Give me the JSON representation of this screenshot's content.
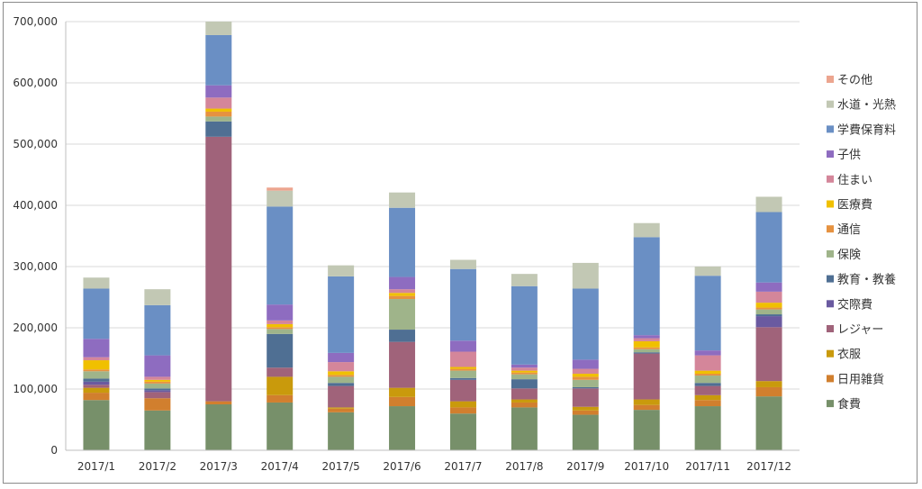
{
  "chart_data": {
    "type": "bar",
    "stacked": true,
    "title": "",
    "xlabel": "",
    "ylabel": "",
    "ylim": [
      0,
      700000
    ],
    "yticks": [
      0,
      100000,
      200000,
      300000,
      400000,
      500000,
      600000,
      700000
    ],
    "ytick_labels": [
      "0",
      "100,000",
      "200,000",
      "300,000",
      "400,000",
      "500,000",
      "600,000",
      "700,000"
    ],
    "grid": true,
    "legend_position": "right",
    "categories": [
      "2017/1",
      "2017/2",
      "2017/3",
      "2017/4",
      "2017/5",
      "2017/6",
      "2017/7",
      "2017/8",
      "2017/9",
      "2017/10",
      "2017/11",
      "2017/12"
    ],
    "series": [
      {
        "name": "食費",
        "color": "#77906a",
        "values": [
          82000,
          65000,
          75000,
          78000,
          62000,
          72000,
          60000,
          70000,
          58000,
          66000,
          72000,
          88000
        ]
      },
      {
        "name": "日用雑貨",
        "color": "#d17f2e",
        "values": [
          12000,
          20000,
          5000,
          12000,
          6000,
          15000,
          10000,
          8000,
          7000,
          8000,
          10000,
          15000
        ]
      },
      {
        "name": "衣服",
        "color": "#c99a0c",
        "values": [
          8000,
          0,
          0,
          30000,
          2000,
          15000,
          10000,
          5000,
          6000,
          9000,
          8000,
          10000
        ]
      },
      {
        "name": "レジャー",
        "color": "#a0637a",
        "values": [
          5000,
          10000,
          432000,
          15000,
          35000,
          75000,
          35000,
          18000,
          30000,
          75000,
          15000,
          88000
        ]
      },
      {
        "name": "交際費",
        "color": "#6a5aa0",
        "values": [
          5000,
          3000,
          0,
          0,
          0,
          0,
          0,
          0,
          0,
          0,
          0,
          18000
        ]
      },
      {
        "name": "教育・教養",
        "color": "#4f6f93",
        "values": [
          5000,
          3000,
          25000,
          55000,
          5000,
          20000,
          3000,
          15000,
          2000,
          2000,
          5000,
          3000
        ]
      },
      {
        "name": "保険",
        "color": "#9fb48a",
        "values": [
          12000,
          8000,
          8000,
          8000,
          10000,
          50000,
          12000,
          8000,
          12000,
          5000,
          12000,
          8000
        ]
      },
      {
        "name": "通信",
        "color": "#e69240",
        "values": [
          3000,
          3000,
          8000,
          3000,
          3000,
          5000,
          3000,
          3000,
          5000,
          3000,
          3000,
          3000
        ]
      },
      {
        "name": "医療費",
        "color": "#f0c000",
        "values": [
          15000,
          3000,
          5000,
          5000,
          6000,
          5000,
          3000,
          3000,
          5000,
          10000,
          5000,
          8000
        ]
      },
      {
        "name": "住まい",
        "color": "#d4869a",
        "values": [
          5000,
          5000,
          18000,
          6000,
          15000,
          6000,
          25000,
          5000,
          8000,
          5000,
          25000,
          18000
        ]
      },
      {
        "name": "子供",
        "color": "#8e6cc0",
        "values": [
          30000,
          35000,
          20000,
          26000,
          15000,
          20000,
          18000,
          5000,
          15000,
          5000,
          8000,
          15000
        ]
      },
      {
        "name": "学費保育料",
        "color": "#6a8fc4",
        "values": [
          82000,
          82000,
          82000,
          160000,
          125000,
          113000,
          117000,
          128000,
          116000,
          160000,
          122000,
          115000
        ]
      },
      {
        "name": "水道・光熱",
        "color": "#c2c8b4",
        "values": [
          18000,
          26000,
          22000,
          26000,
          18000,
          25000,
          15000,
          20000,
          42000,
          23000,
          15000,
          25000
        ]
      },
      {
        "name": "その他",
        "color": "#eca58f",
        "values": [
          0,
          0,
          0,
          5000,
          0,
          0,
          0,
          0,
          0,
          0,
          0,
          0
        ]
      }
    ]
  }
}
